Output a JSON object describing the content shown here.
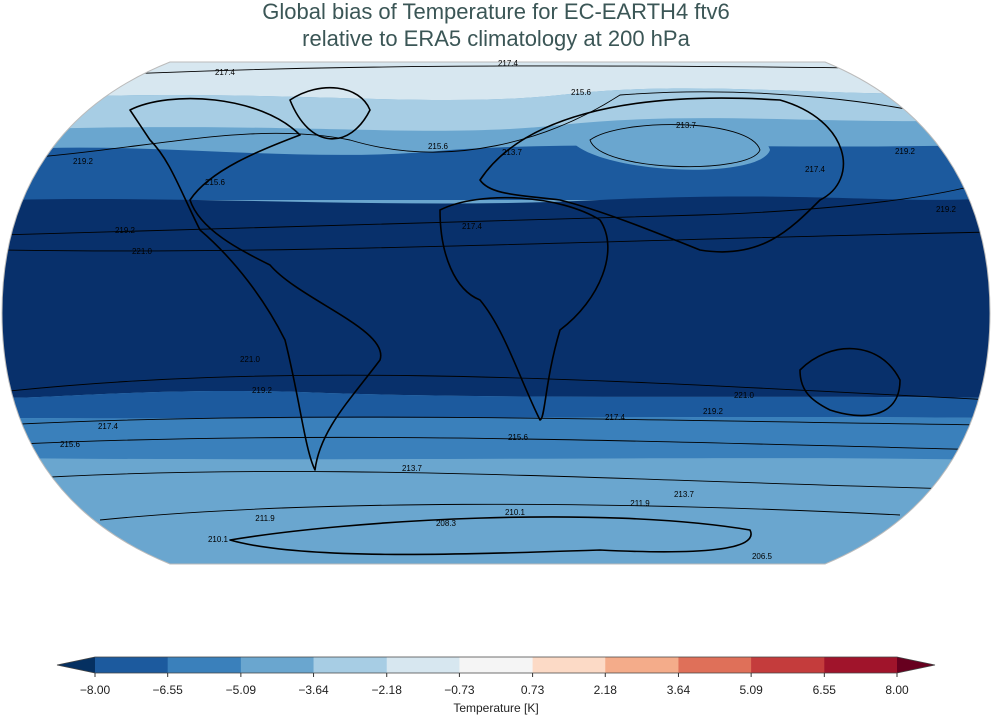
{
  "title": [
    "Global bias of Temperature for EC-EARTH4 ftv6",
    "relative to ERA5 climatology at 200 hPa"
  ],
  "contour_labels": [
    217.4,
    217.4,
    215.6,
    213.7,
    219.2,
    219.2,
    215.6,
    215.6,
    213.7,
    217.4,
    219.2,
    219.2,
    217.4,
    {
      "value": 221,
      "label": "221.0"
    },
    {
      "value": 221,
      "label": "221.0"
    },
    {
      "value": 221,
      "label": "221.0"
    },
    219.2,
    219.2,
    217.4,
    217.4,
    215.6,
    215.6,
    213.7,
    213.7,
    211.9,
    211.9,
    210.1,
    208.3,
    210.1,
    206.5
  ],
  "colorbar": {
    "label": "Temperature [K]",
    "ticks": [
      {
        "value": -8,
        "label": "−8.00"
      },
      {
        "value": -6.55,
        "label": "−6.55"
      },
      {
        "value": -5.09,
        "label": "−5.09"
      },
      {
        "value": -3.64,
        "label": "−3.64"
      },
      {
        "value": -2.18,
        "label": "−2.18"
      },
      {
        "value": -0.73,
        "label": "−0.73"
      },
      {
        "value": 0.73,
        "label": "0.73"
      },
      {
        "value": 2.18,
        "label": "2.18"
      },
      {
        "value": 3.64,
        "label": "3.64"
      },
      {
        "value": 5.09,
        "label": "5.09"
      },
      {
        "value": 6.55,
        "label": "6.55"
      },
      {
        "value": 8,
        "label": "8.00"
      }
    ],
    "colors": [
      "#1c5a9e",
      "#3a80bb",
      "#6aa6cf",
      "#a7cde4",
      "#d7e7f0",
      "#f5f5f5",
      "#fcdac6",
      "#f4ac8a",
      "#df7059",
      "#c43c3c",
      "#a0142b"
    ],
    "extend_colors": [
      "#053061",
      "#67001f"
    ]
  }
}
